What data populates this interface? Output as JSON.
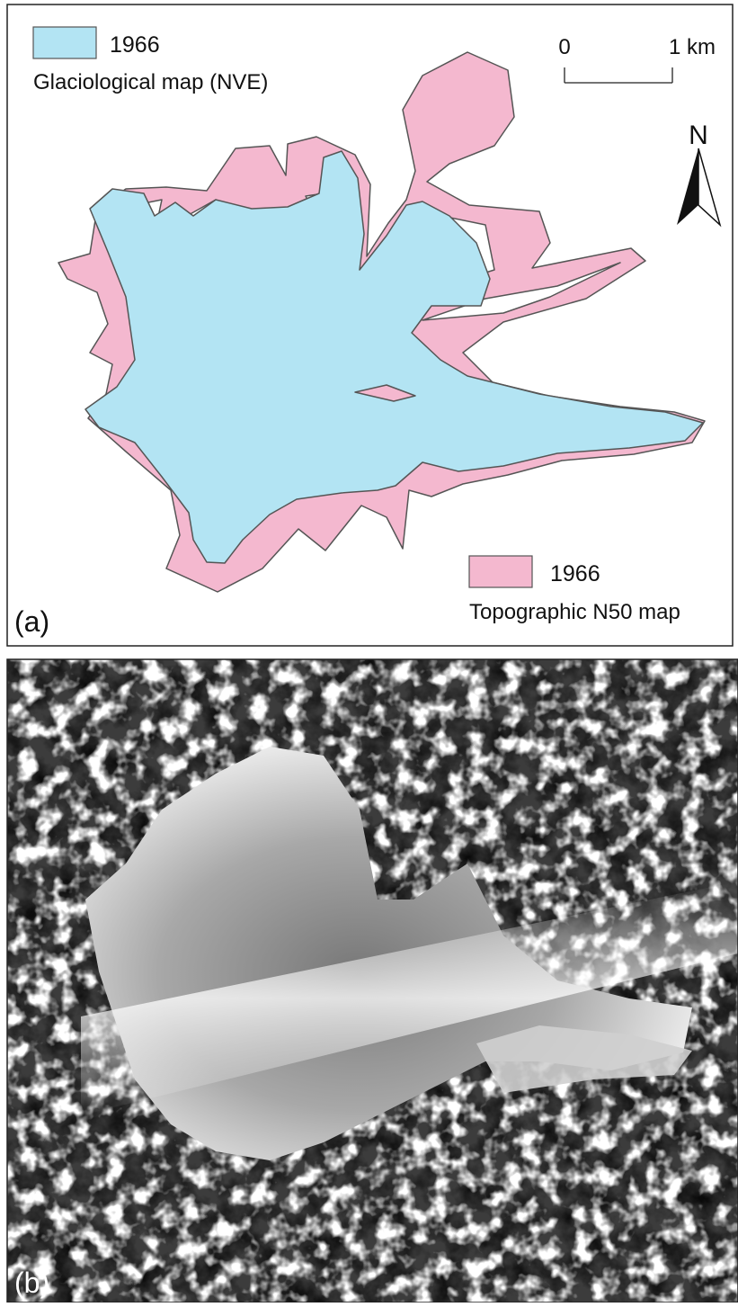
{
  "panel_a": {
    "label": "(a)",
    "legend_top": {
      "year": "1966",
      "description": "Glaciological map (NVE)"
    },
    "legend_bottom": {
      "year": "1966",
      "description": "Topographic N50 map"
    },
    "scale_bar": {
      "start": "0",
      "end": "1 km"
    },
    "north_arrow": "N"
  },
  "panel_b": {
    "label": "(b)"
  }
}
